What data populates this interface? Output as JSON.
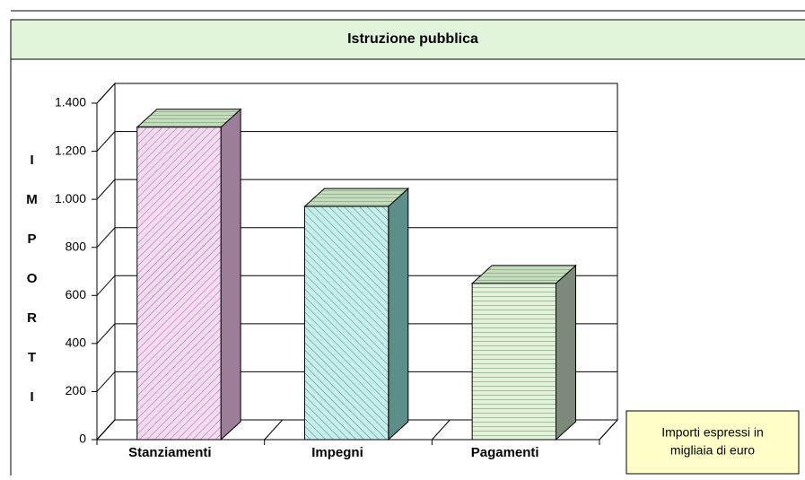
{
  "chart_data": {
    "type": "bar3d",
    "title": "Istruzione pubblica",
    "y_label": "IMPORTI",
    "categories": [
      "Stanziamenti",
      "Impegni",
      "Pagamenti"
    ],
    "values": [
      1300,
      970,
      650
    ],
    "colors": [
      "#f6daf2",
      "#c6efec",
      "#e2f2da"
    ],
    "ylim": [
      0,
      1400
    ],
    "yticks": [
      0,
      200,
      400,
      600,
      800,
      {
        "value": 1000,
        "label": "1.000"
      },
      {
        "value": 1200,
        "label": "1.200"
      },
      {
        "value": 1400,
        "label": "1.400"
      }
    ],
    "grid": true,
    "note": [
      "Importi espressi in",
      "migliaia di euro"
    ]
  }
}
